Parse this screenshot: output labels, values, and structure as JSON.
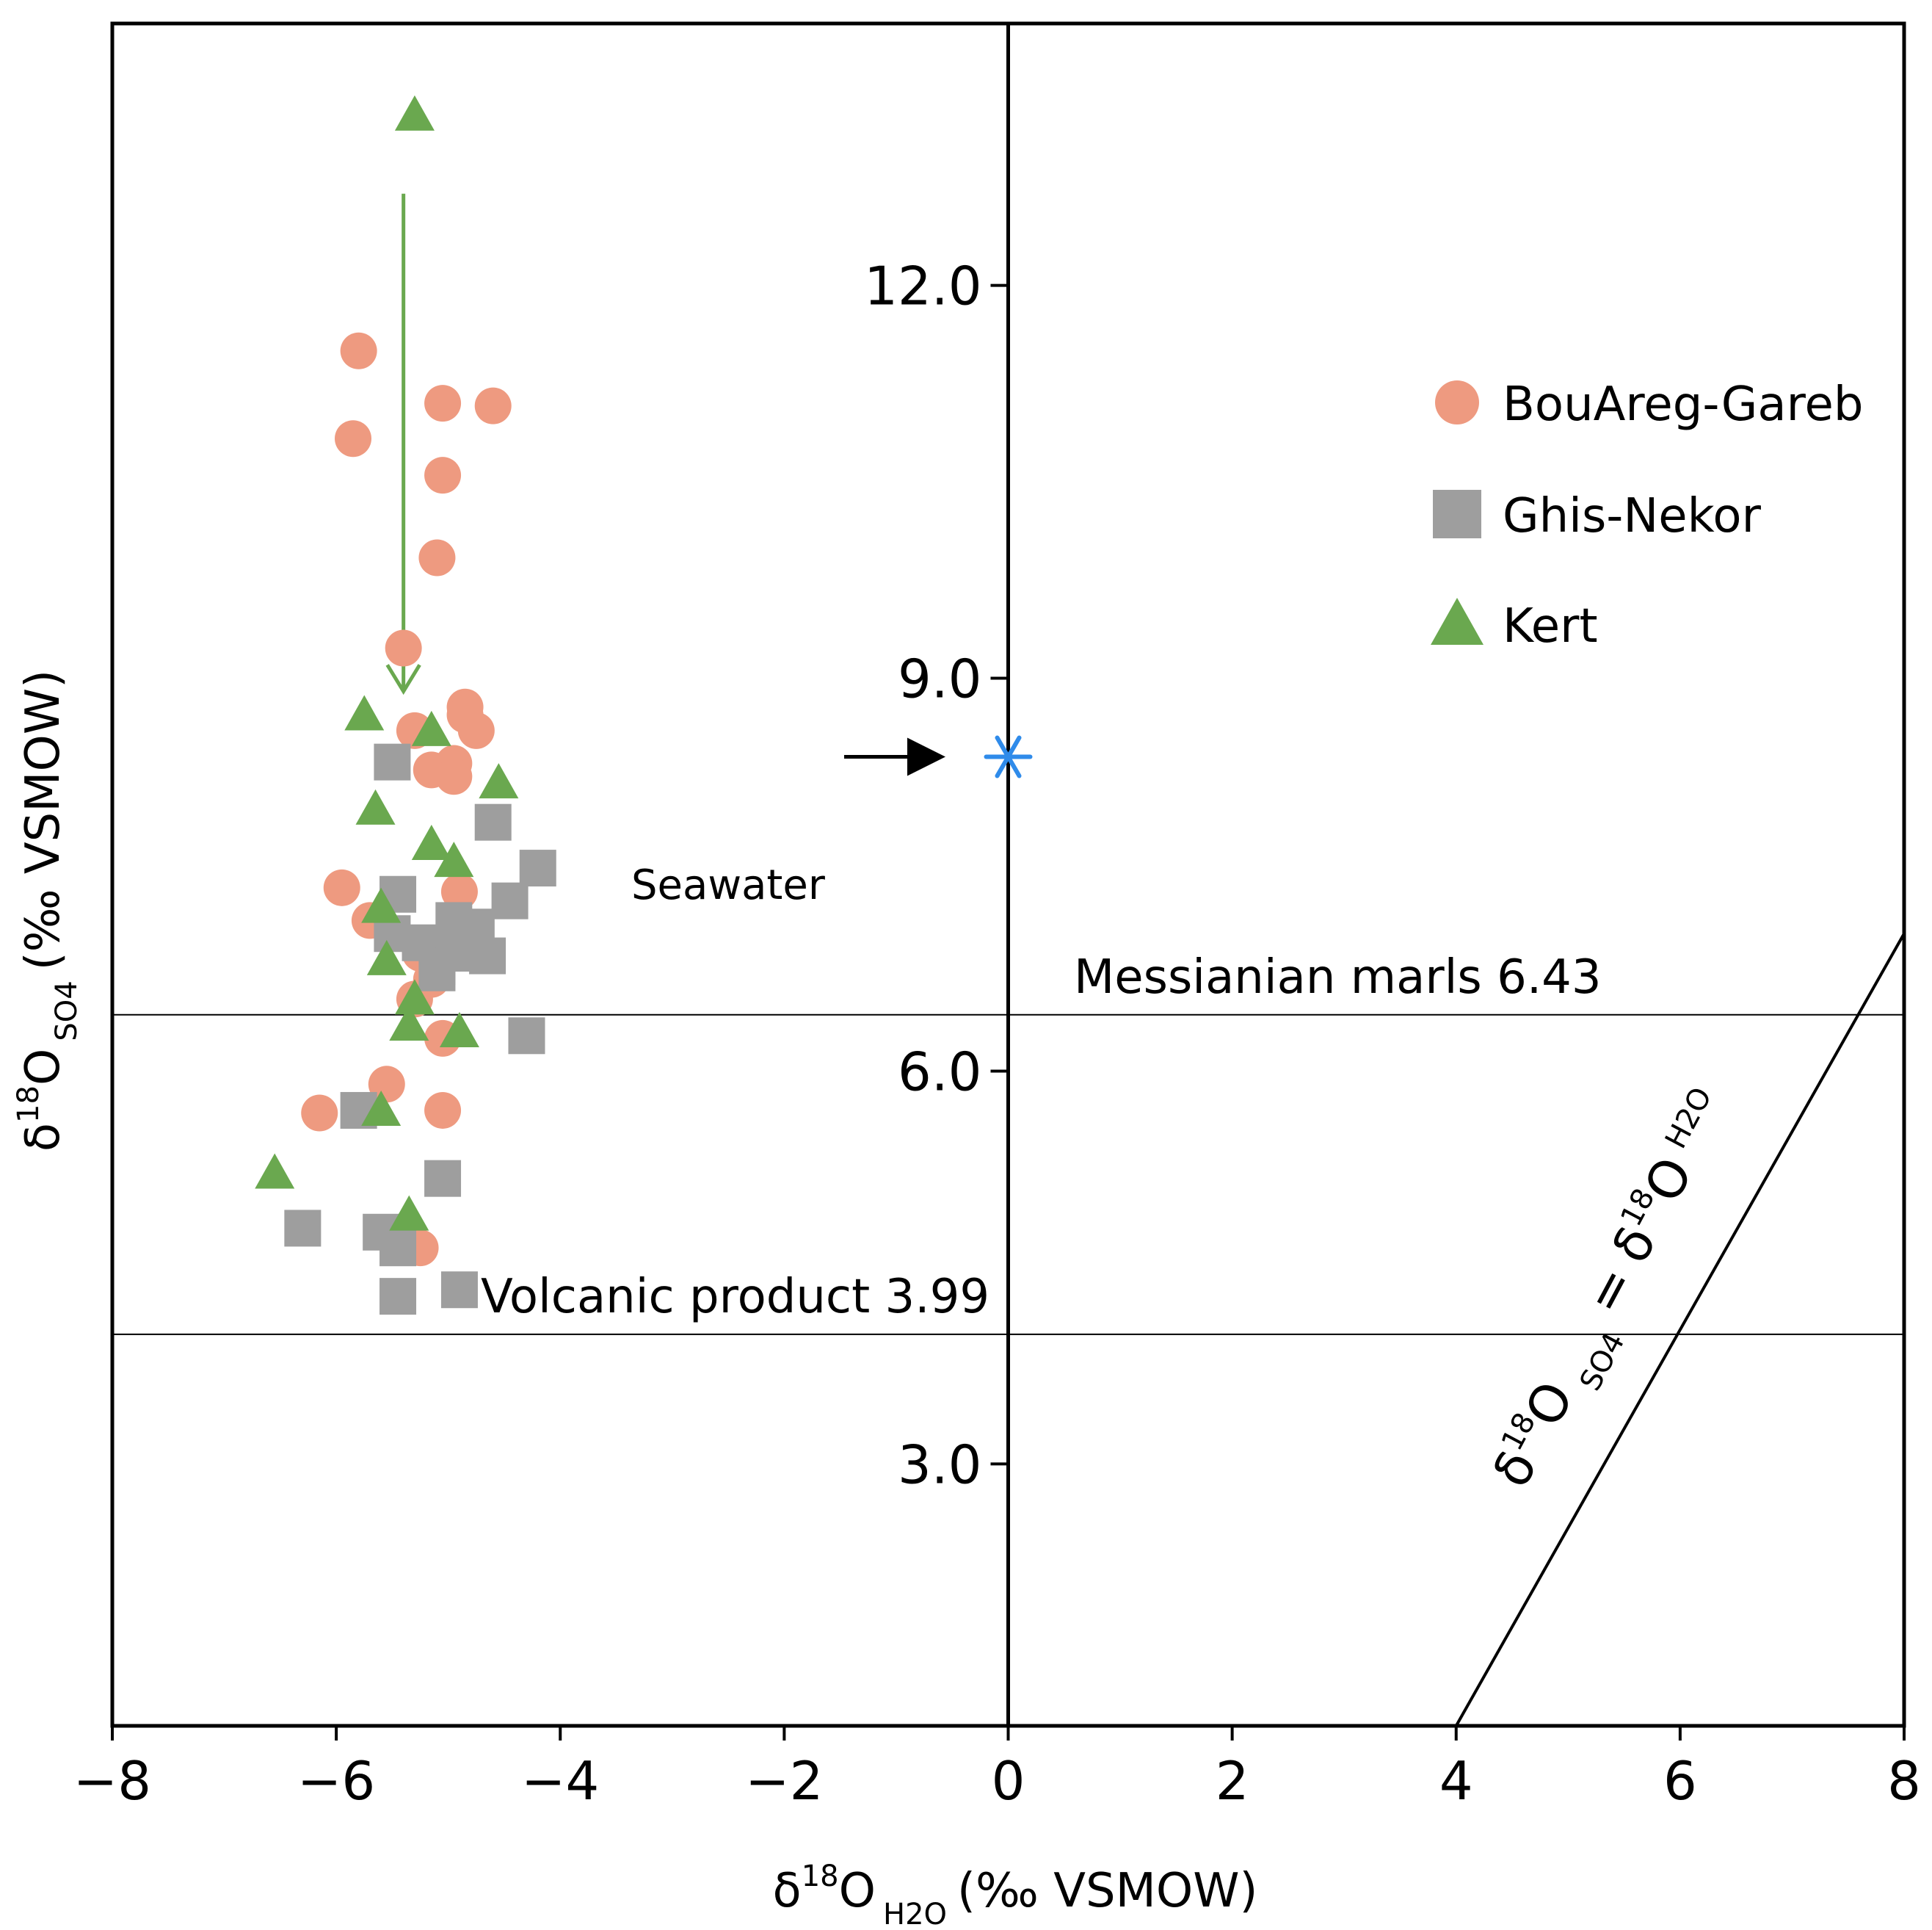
{
  "chart_data": {
    "type": "scatter",
    "title": "",
    "xlabel": {
      "main": "δ",
      "sup": "18",
      "o": "O",
      "sub": "H2O",
      "unit": "(‰ VSMOW)"
    },
    "ylabel": {
      "main": "δ",
      "sup": "18",
      "o": "O",
      "sub": "SO4",
      "unit": "(‰ VSMOW)"
    },
    "xlim": [
      -8,
      8
    ],
    "ylim": [
      1.0,
      14.0
    ],
    "x_ticks": [
      -8,
      -6,
      -4,
      -2,
      0,
      2,
      4,
      6,
      8
    ],
    "x_tick_labels": [
      "−8",
      "−6",
      "−4",
      "−2",
      "0",
      "2",
      "4",
      "6",
      "8"
    ],
    "y_ticks": [
      3,
      6,
      9,
      12
    ],
    "y_tick_labels": [
      "3.0",
      "6.0",
      "9.0",
      "12.0"
    ],
    "grid": false,
    "legend_position": "top-right",
    "series": [
      {
        "name": "BouAreg-Gareb",
        "marker": "circle",
        "color": "#EE9A80",
        "points": [
          [
            -5.8,
            11.5
          ],
          [
            -5.05,
            11.1
          ],
          [
            -4.6,
            11.08
          ],
          [
            -5.85,
            10.83
          ],
          [
            -5.05,
            10.55
          ],
          [
            -5.1,
            9.92
          ],
          [
            -5.4,
            9.23
          ],
          [
            -4.85,
            8.78
          ],
          [
            -4.85,
            8.72
          ],
          [
            -5.3,
            8.6
          ],
          [
            -4.75,
            8.6
          ],
          [
            -4.95,
            8.35
          ],
          [
            -5.15,
            8.3
          ],
          [
            -4.95,
            8.25
          ],
          [
            -5.95,
            7.4
          ],
          [
            -4.9,
            7.37
          ],
          [
            -5.7,
            7.15
          ],
          [
            -5.25,
            6.9
          ],
          [
            -5.15,
            6.7
          ],
          [
            -5.3,
            6.55
          ],
          [
            -5.05,
            6.25
          ],
          [
            -5.55,
            5.9
          ],
          [
            -6.15,
            5.68
          ],
          [
            -5.05,
            5.7
          ],
          [
            -5.25,
            4.65
          ]
        ]
      },
      {
        "name": "Ghis-Nekor",
        "marker": "square",
        "color": "#9E9E9E",
        "points": [
          [
            -5.5,
            8.36
          ],
          [
            -4.6,
            7.9
          ],
          [
            -4.2,
            7.55
          ],
          [
            -5.45,
            7.35
          ],
          [
            -4.45,
            7.3
          ],
          [
            -4.95,
            7.15
          ],
          [
            -4.75,
            7.1
          ],
          [
            -5.5,
            7.05
          ],
          [
            -5.25,
            6.98
          ],
          [
            -5.05,
            6.9
          ],
          [
            -4.95,
            6.9
          ],
          [
            -4.65,
            6.88
          ],
          [
            -5.1,
            6.8
          ],
          [
            -5.1,
            6.75
          ],
          [
            -4.3,
            6.27
          ],
          [
            -5.8,
            5.7
          ],
          [
            -5.05,
            5.18
          ],
          [
            -6.3,
            4.8
          ],
          [
            -5.6,
            4.77
          ],
          [
            -5.45,
            4.65
          ],
          [
            -4.9,
            4.33
          ],
          [
            -5.45,
            4.28
          ]
        ]
      },
      {
        "name": "Kert",
        "marker": "triangle",
        "color": "#6AA84F",
        "points": [
          [
            -5.3,
            13.3
          ],
          [
            -5.75,
            8.72
          ],
          [
            -5.15,
            8.6
          ],
          [
            -4.55,
            8.2
          ],
          [
            -5.65,
            8.0
          ],
          [
            -5.15,
            7.73
          ],
          [
            -4.95,
            7.6
          ],
          [
            -5.6,
            7.25
          ],
          [
            -5.55,
            6.85
          ],
          [
            -5.3,
            6.55
          ],
          [
            -5.35,
            6.35
          ],
          [
            -4.9,
            6.3
          ],
          [
            -5.6,
            5.7
          ],
          [
            -6.55,
            5.22
          ],
          [
            -5.35,
            4.9
          ]
        ]
      }
    ],
    "seawater": {
      "label": "Seawater",
      "x": 0,
      "y": 8.4,
      "color": "#2F8BEA"
    },
    "reference_lines": [
      {
        "label": "Messianian marls 6.43",
        "y": 6.43
      },
      {
        "label": "Volcanic product 3.99",
        "y": 3.99
      }
    ],
    "equality_line": {
      "points": [
        [
          4,
          1.0
        ],
        [
          8,
          7.05
        ]
      ],
      "label": {
        "d1": "δ",
        "sup1": "18",
        "o1": "O",
        "sub1": "SO4",
        "eq": "=",
        "d2": "δ",
        "sup2": "18",
        "o2": "O",
        "sub2": "H2O"
      }
    },
    "trend_arrow": {
      "from": [
        -5.4,
        12.7
      ],
      "to": [
        -5.4,
        8.9
      ],
      "color": "#6AA84F"
    }
  }
}
